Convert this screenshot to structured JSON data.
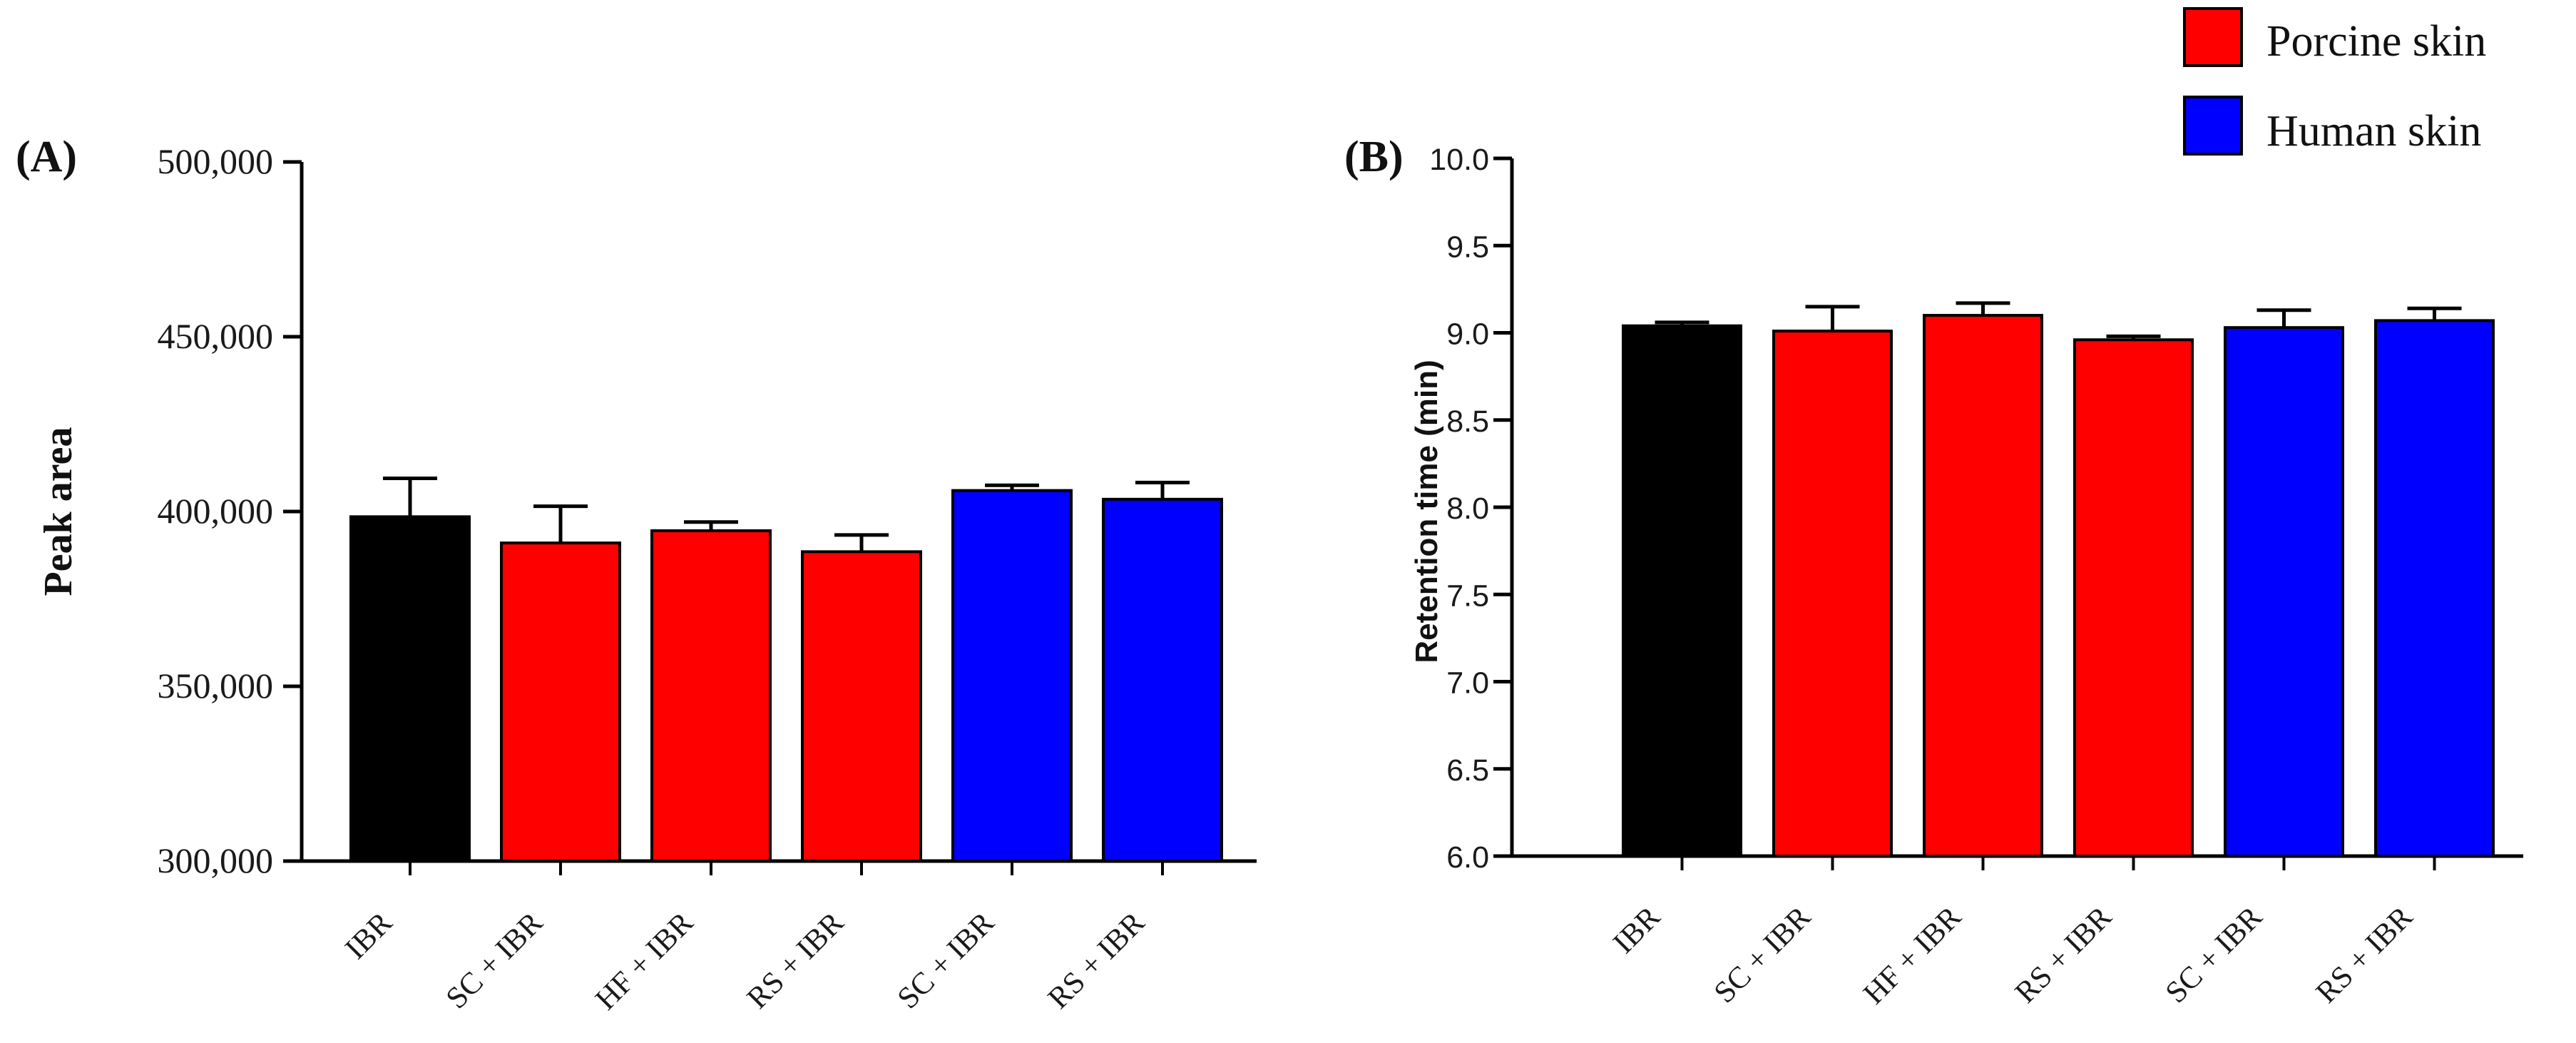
{
  "legend": [
    {
      "label": "Porcine skin",
      "color": "#ff0000"
    },
    {
      "label": "Human skin",
      "color": "#0000ff"
    }
  ],
  "chart_data": [
    {
      "type": "bar",
      "panel_label": "(A)",
      "title": "",
      "xlabel": "",
      "ylabel": "Peak area",
      "ylim": [
        300000,
        500000
      ],
      "yticks": [
        300000,
        350000,
        400000,
        450000,
        500000
      ],
      "ytick_labels": [
        "300,000",
        "350,000",
        "400,000",
        "450,000",
        "500,000"
      ],
      "categories": [
        "IBR",
        "SC + IBR",
        "HF + IBR",
        "RS + IBR",
        "SC + IBR",
        "RS + IBR"
      ],
      "values": [
        398500,
        391000,
        394500,
        388500,
        406000,
        403500
      ],
      "errors": [
        11000,
        10500,
        2500,
        4800,
        1500,
        4800
      ],
      "colors": [
        "#000000",
        "#ff0000",
        "#ff0000",
        "#ff0000",
        "#0000ff",
        "#0000ff"
      ]
    },
    {
      "type": "bar",
      "panel_label": "(B)",
      "title": "",
      "xlabel": "",
      "ylabel": "Retention time (min)",
      "ylim": [
        6.0,
        10.0
      ],
      "yticks": [
        6.0,
        6.5,
        7.0,
        7.5,
        8.0,
        8.5,
        9.0,
        9.5,
        10.0
      ],
      "ytick_labels": [
        "6.0",
        "6.5",
        "7.0",
        "7.5",
        "8.0",
        "8.5",
        "9.0",
        "9.5",
        "10.0"
      ],
      "categories": [
        "IBR",
        "SC + IBR",
        "HF + IBR",
        "RS + IBR",
        "SC + IBR",
        "RS + IBR"
      ],
      "values": [
        9.04,
        9.01,
        9.1,
        8.96,
        9.03,
        9.07
      ],
      "errors": [
        0.02,
        0.14,
        0.07,
        0.02,
        0.1,
        0.07
      ],
      "colors": [
        "#000000",
        "#ff0000",
        "#ff0000",
        "#ff0000",
        "#0000ff",
        "#0000ff"
      ]
    }
  ]
}
